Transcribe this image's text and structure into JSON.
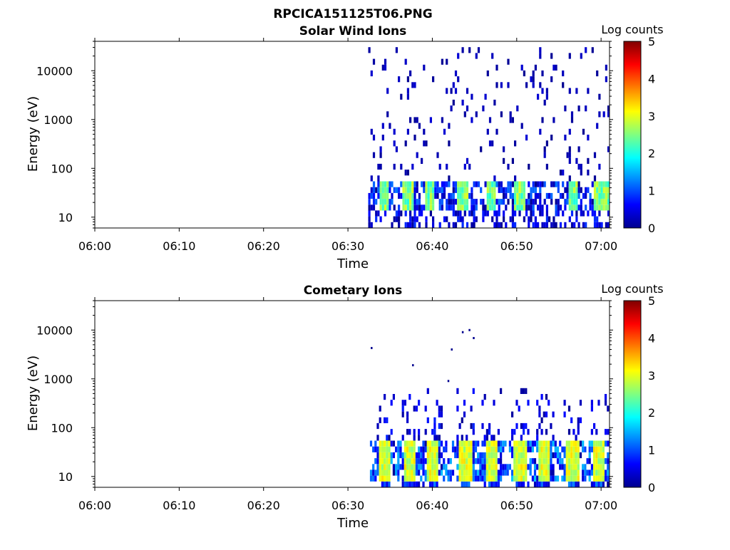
{
  "figure_title": "RPCICA151125T06.PNG",
  "colors": {
    "colormap": [
      "#00008f",
      "#0000ff",
      "#0080ff",
      "#00ffff",
      "#80ff80",
      "#ffff00",
      "#ff8000",
      "#ff0000",
      "#800000"
    ]
  },
  "chart_data": [
    {
      "type": "heatmap",
      "title": "Solar Wind Ions",
      "xlabel": "Time",
      "ylabel": "Energy (eV)",
      "x_tick_labels": [
        "06:00",
        "06:10",
        "06:20",
        "06:30",
        "06:40",
        "06:50",
        "07:00"
      ],
      "x_range_minutes": [
        0,
        61
      ],
      "y_scale": "log",
      "y_tick_labels": [
        "10",
        "100",
        "1000",
        "10000"
      ],
      "y_range": [
        6,
        40000
      ],
      "colorbar": {
        "label": "Log counts",
        "range": [
          0,
          5
        ],
        "tick_labels": [
          "0",
          "1",
          "2",
          "3",
          "4",
          "5"
        ]
      },
      "data_start_minute": 32.4,
      "peaks_minutes": [
        34.2,
        37.0,
        39.5,
        43.5,
        46.8,
        50.2,
        56.5,
        59.5,
        60.5
      ],
      "peak_energy_eV": [
        25,
        40
      ],
      "peak_log_counts": [
        2.0,
        3.0
      ],
      "background": "sparse low-count (0-1) pixels from 10 eV to ~30000 eV after 06:32"
    },
    {
      "type": "heatmap",
      "title": "Cometary Ions",
      "xlabel": "Time",
      "ylabel": "Energy (eV)",
      "x_tick_labels": [
        "06:00",
        "06:10",
        "06:20",
        "06:30",
        "06:40",
        "06:50",
        "07:00"
      ],
      "x_range_minutes": [
        0,
        61
      ],
      "y_scale": "log",
      "y_tick_labels": [
        "10",
        "100",
        "1000",
        "10000"
      ],
      "y_range": [
        6,
        40000
      ],
      "colorbar": {
        "label": "Log counts",
        "range": [
          0,
          5
        ],
        "tick_labels": [
          "0",
          "1",
          "2",
          "3",
          "4",
          "5"
        ]
      },
      "data_start_minute": 32.6,
      "peaks_minutes": [
        34.3,
        37.2,
        40.0,
        43.8,
        47.0,
        50.3,
        53.2,
        56.5,
        59.5
      ],
      "peak_energy_eV": [
        15,
        45
      ],
      "peak_log_counts": [
        2.5,
        3.3
      ],
      "plumes_up_to_eV": 600,
      "outliers": [
        {
          "minute": 32.7,
          "eV": 4500
        },
        {
          "minute": 37.6,
          "eV": 2000
        },
        {
          "minute": 41.8,
          "eV": 950
        },
        {
          "minute": 42.2,
          "eV": 4200
        },
        {
          "minute": 43.5,
          "eV": 9500
        },
        {
          "minute": 44.3,
          "eV": 10500
        },
        {
          "minute": 44.8,
          "eV": 7200
        }
      ]
    }
  ]
}
